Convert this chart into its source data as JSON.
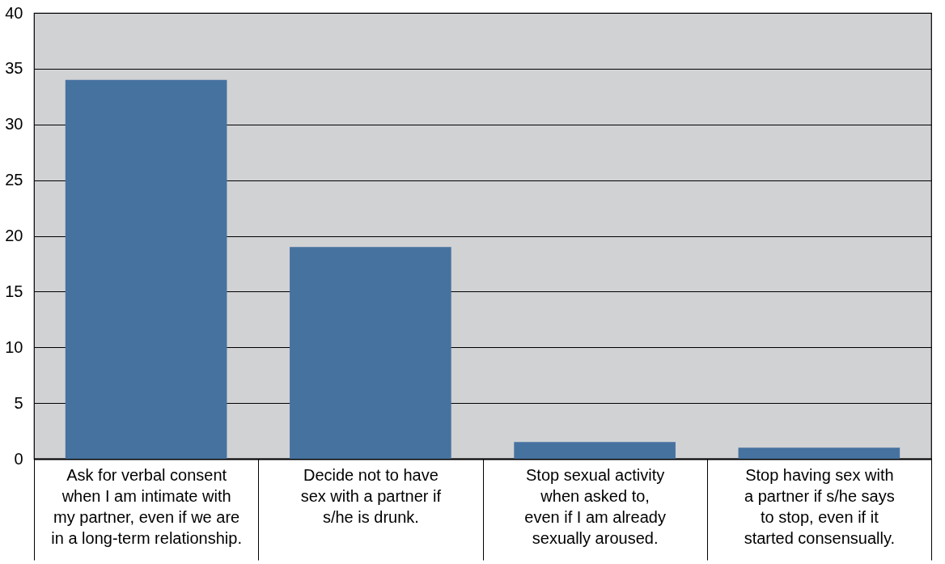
{
  "chart_data": {
    "type": "bar",
    "categories": [
      "Ask for verbal consent\nwhen I am intimate with\nmy partner, even if we are\nin a long-term relationship.",
      "Decide not to have\nsex with a partner if\ns/he is drunk.",
      "Stop sexual activity\nwhen asked to,\neven if I am already\nsexually aroused.",
      "Stop having sex with\na partner if s/he says\nto stop, even if it\nstarted consensually."
    ],
    "values": [
      34,
      19,
      1.5,
      1.0
    ],
    "color": "#4672a0",
    "ylim": [
      0,
      40
    ],
    "yticks": [
      0,
      5,
      10,
      15,
      20,
      25,
      30,
      35,
      40
    ],
    "grid": "y"
  }
}
